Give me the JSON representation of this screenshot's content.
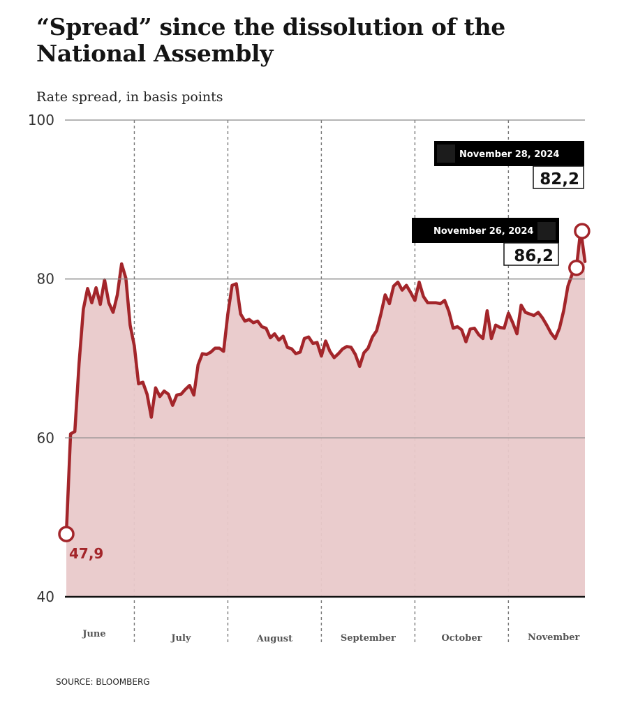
{
  "chart_data": {
    "type": "area",
    "title": "“Spread” since the dissolution of the National Assembly",
    "subtitle": "Rate spread, in basis points",
    "xlabel": "",
    "ylabel": "Rate spread, in basis points",
    "ylim": [
      40,
      100
    ],
    "yticks": [
      {
        "value": 100,
        "label": "100"
      },
      {
        "value": 80,
        "label": "80"
      },
      {
        "value": 60,
        "label": "60"
      },
      {
        "value": 40,
        "label": "40"
      }
    ],
    "grid": true,
    "months": [
      "June",
      "July",
      "August",
      "September",
      "October",
      "November"
    ],
    "month_boundaries_index": [
      16,
      38,
      60,
      82,
      104
    ],
    "series": [
      {
        "name": "Spread",
        "color": "#a3252a",
        "fill": "#e9c9ca",
        "values": [
          47.9,
          60.5,
          60.8,
          69.4,
          76.2,
          78.8,
          77.0,
          78.9,
          76.8,
          79.9,
          77.0,
          75.8,
          78.0,
          81.9,
          80.1,
          74.2,
          71.6,
          66.8,
          67.0,
          65.5,
          62.6,
          66.3,
          65.2,
          65.9,
          65.5,
          64.1,
          65.4,
          65.5,
          66.1,
          66.6,
          65.4,
          69.2,
          70.6,
          70.5,
          70.8,
          71.3,
          71.3,
          70.9,
          75.6,
          79.2,
          79.4,
          75.6,
          74.7,
          74.9,
          74.5,
          74.7,
          74.0,
          73.8,
          72.6,
          73.1,
          72.3,
          72.8,
          71.4,
          71.2,
          70.6,
          70.8,
          72.5,
          72.7,
          71.9,
          72.0,
          70.3,
          72.2,
          70.9,
          70.1,
          70.6,
          71.2,
          71.5,
          71.4,
          70.5,
          69.0,
          70.7,
          71.3,
          72.7,
          73.5,
          75.6,
          78.0,
          76.9,
          79.1,
          79.6,
          78.6,
          79.2,
          78.3,
          77.3,
          79.6,
          77.8,
          77.0,
          77.0,
          77.0,
          76.9,
          77.3,
          75.9,
          73.8,
          74.0,
          73.6,
          72.1,
          73.7,
          73.8,
          73.0,
          72.5,
          76.0,
          72.5,
          74.2,
          73.9,
          73.8,
          75.7,
          74.5,
          73.1,
          76.7,
          75.8,
          75.6,
          75.4,
          75.8,
          75.1,
          74.2,
          73.2,
          72.5,
          73.8,
          76.0,
          79.1,
          80.6,
          81.4,
          86.2,
          82.2
        ]
      }
    ],
    "annotations": [
      {
        "type": "start",
        "index": 0,
        "label": "47,9"
      },
      {
        "type": "callout",
        "index": 120,
        "date": "November 26, 2024",
        "label": "86,2"
      },
      {
        "type": "callout",
        "index": 121,
        "date": "November 28, 2024",
        "label": "82,2"
      }
    ],
    "source": "SOURCE: BLOOMBERG"
  }
}
